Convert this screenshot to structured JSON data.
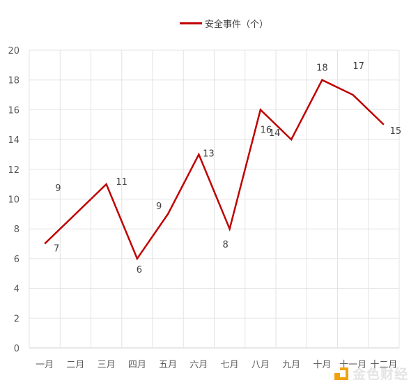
{
  "chart_data": {
    "type": "line",
    "title": "",
    "xlabel": "",
    "ylabel": "",
    "categories": [
      "一月",
      "二月",
      "三月",
      "四月",
      "五月",
      "六月",
      "七月",
      "八月",
      "九月",
      "十月",
      "十一月",
      "十二月"
    ],
    "series": [
      {
        "name": "安全事件（个）",
        "color": "#c00000",
        "values": [
          7,
          9,
          11,
          6,
          9,
          13,
          8,
          16,
          14,
          18,
          17,
          15
        ]
      }
    ],
    "ylim": [
      0,
      20
    ],
    "yticks": [
      0,
      2,
      4,
      6,
      8,
      10,
      12,
      14,
      16,
      18,
      20
    ],
    "grid": true,
    "legend_position": "top",
    "data_labels": true
  },
  "legend": {
    "label": "安全事件（个）"
  },
  "watermark": {
    "text": "金色财经"
  }
}
